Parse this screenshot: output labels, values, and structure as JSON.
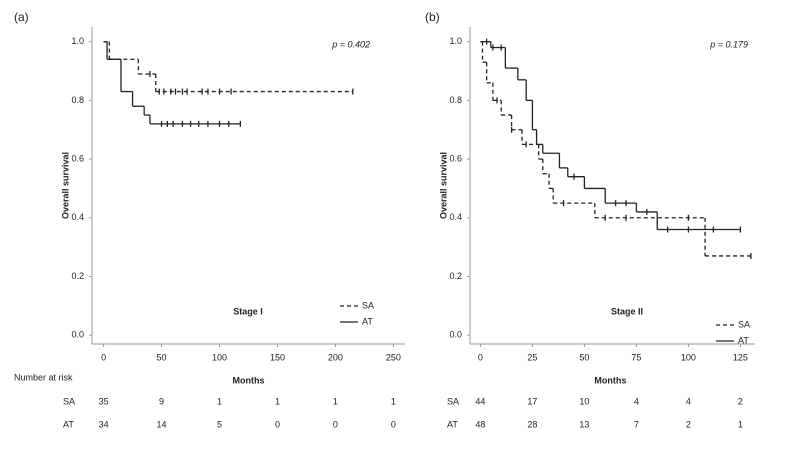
{
  "chart_data": [
    {
      "type": "step",
      "panel_label": "(a)",
      "title": "Stage I",
      "annotation": "p = 0.402",
      "xlabel": "Months",
      "ylabel": "Overall survival",
      "xlim": [
        -10,
        260
      ],
      "ylim": [
        -0.03,
        1.05
      ],
      "xticks": [
        0,
        50,
        100,
        150,
        200,
        250
      ],
      "yticks": [
        {
          "value": 0,
          "label": "0.0"
        },
        {
          "value": 0.2,
          "label": "0.2"
        },
        {
          "value": 0.4,
          "label": "0.4"
        },
        {
          "value": 0.6,
          "label": "0.6"
        },
        {
          "value": 0.8,
          "label": "0.8"
        },
        {
          "value": 1,
          "label": "1.0"
        }
      ],
      "series": [
        {
          "name": "SA",
          "dashed": true,
          "color": "#222",
          "x": [
            0,
            5,
            30,
            45,
            215
          ],
          "values": [
            1,
            0.94,
            0.89,
            0.83,
            0.83
          ],
          "censored": [
            40,
            48,
            52,
            58,
            62,
            68,
            72,
            85,
            90,
            100,
            110
          ]
        },
        {
          "name": "AT",
          "dashed": false,
          "color": "#222",
          "x": [
            0,
            3,
            15,
            25,
            35,
            40,
            118
          ],
          "values": [
            1,
            0.94,
            0.83,
            0.78,
            0.75,
            0.72,
            0.72
          ],
          "censored": [
            50,
            55,
            60,
            68,
            75,
            82,
            90,
            100,
            108
          ]
        }
      ],
      "risk_table": {
        "title": "Number at risk",
        "rows": [
          {
            "name": "SA",
            "values": [
              35,
              9,
              1,
              1,
              1,
              1
            ]
          },
          {
            "name": "AT",
            "values": [
              34,
              14,
              5,
              0,
              0,
              0
            ]
          }
        ]
      }
    },
    {
      "type": "step",
      "panel_label": "(b)",
      "title": "Stage II",
      "annotation": "p = 0.179",
      "xlabel": "Months",
      "ylabel": "Overall survival",
      "xlim": [
        -5,
        132
      ],
      "ylim": [
        -0.03,
        1.05
      ],
      "xticks": [
        0,
        25,
        50,
        75,
        100,
        125
      ],
      "yticks": [
        {
          "value": 0,
          "label": "0.0"
        },
        {
          "value": 0.2,
          "label": "0.2"
        },
        {
          "value": 0.4,
          "label": "0.4"
        },
        {
          "value": 0.6,
          "label": "0.6"
        },
        {
          "value": 0.8,
          "label": "0.8"
        },
        {
          "value": 1,
          "label": "1.0"
        }
      ],
      "series": [
        {
          "name": "SA",
          "dashed": true,
          "color": "#222",
          "x": [
            0,
            1,
            3,
            6,
            10,
            15,
            20,
            28,
            30,
            33,
            35,
            55,
            108,
            130
          ],
          "values": [
            1,
            0.93,
            0.86,
            0.8,
            0.75,
            0.7,
            0.65,
            0.6,
            0.55,
            0.5,
            0.45,
            0.4,
            0.27,
            0.27
          ],
          "censored": [
            8,
            15,
            22,
            40,
            60,
            70,
            100
          ]
        },
        {
          "name": "AT",
          "dashed": false,
          "color": "#222",
          "x": [
            0,
            5,
            12,
            18,
            22,
            25,
            27,
            30,
            38,
            42,
            50,
            60,
            75,
            85,
            125
          ],
          "values": [
            1,
            0.98,
            0.91,
            0.87,
            0.8,
            0.7,
            0.65,
            0.62,
            0.57,
            0.54,
            0.5,
            0.45,
            0.42,
            0.36,
            0.36
          ],
          "censored": [
            3,
            6,
            10,
            45,
            65,
            70,
            80,
            90,
            100,
            112
          ]
        }
      ],
      "risk_table": {
        "rows": [
          {
            "name": "SA",
            "values": [
              44,
              17,
              10,
              4,
              4,
              2
            ]
          },
          {
            "name": "AT",
            "values": [
              48,
              28,
              13,
              7,
              2,
              1
            ]
          }
        ]
      }
    }
  ]
}
